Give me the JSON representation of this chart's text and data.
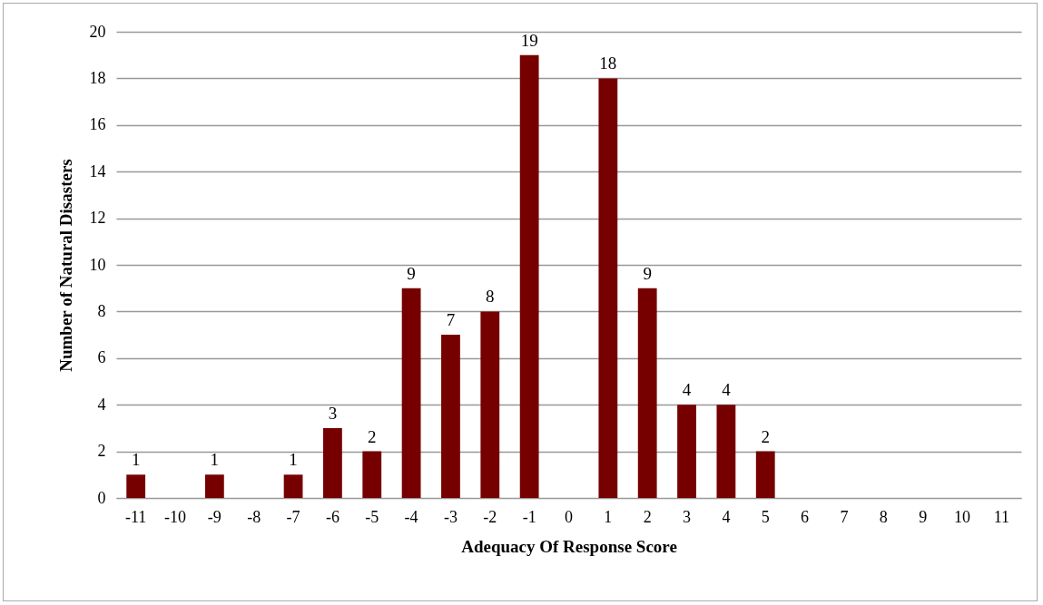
{
  "chart_data": {
    "type": "bar",
    "xlabel": "Adequacy Of Response Score",
    "ylabel": "Number of Natural Disasters",
    "categories": [
      "-11",
      "-10",
      "-9",
      "-8",
      "-7",
      "-6",
      "-5",
      "-4",
      "-3",
      "-2",
      "-1",
      "0",
      "1",
      "2",
      "3",
      "4",
      "5",
      "6",
      "7",
      "8",
      "9",
      "10",
      "11"
    ],
    "values": [
      1,
      null,
      1,
      null,
      1,
      3,
      2,
      9,
      7,
      8,
      19,
      null,
      18,
      9,
      4,
      4,
      2,
      null,
      null,
      null,
      null,
      null,
      null
    ],
    "color": "#760000",
    "ylim": [
      0,
      20
    ],
    "yticks": [
      0,
      2,
      4,
      6,
      8,
      10,
      12,
      14,
      16,
      18,
      20
    ],
    "grid": "y",
    "data_labels": true
  }
}
